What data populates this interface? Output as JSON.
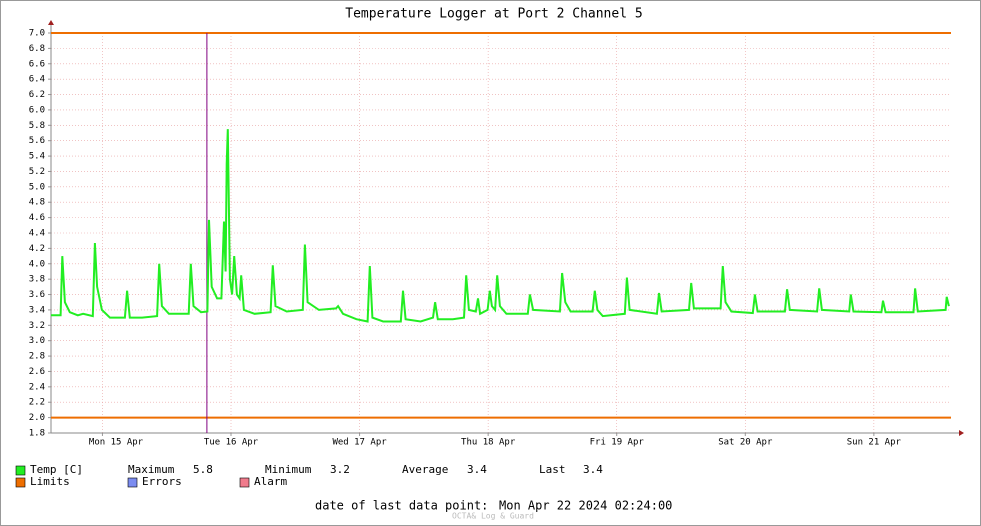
{
  "chart_data": {
    "type": "line",
    "title": "Temperature Logger at Port 2 Channel 5",
    "xlim": [
      0,
      168
    ],
    "xticks": [
      {
        "value": 9.6,
        "label": "Mon 15 Apr"
      },
      {
        "value": 33.6,
        "label": "Tue 16 Apr"
      },
      {
        "value": 57.6,
        "label": "Wed 17 Apr"
      },
      {
        "value": 81.6,
        "label": "Thu 18 Apr"
      },
      {
        "value": 105.6,
        "label": "Fri 19 Apr"
      },
      {
        "value": 129.6,
        "label": "Sat 20 Apr"
      },
      {
        "value": 153.6,
        "label": "Sun 21 Apr"
      }
    ],
    "ylim": [
      1.8,
      7.0
    ],
    "yticks": [
      1.8,
      {
        "value": 2.0,
        "label": "2.0"
      },
      2.2,
      2.4,
      2.6,
      2.8,
      {
        "value": 3.0,
        "label": "3.0"
      },
      3.2,
      3.4,
      3.6,
      3.8,
      {
        "value": 4.0,
        "label": "4.0"
      },
      4.2,
      4.4,
      4.6,
      4.8,
      {
        "value": 5.0,
        "label": "5.0"
      },
      5.2,
      5.4,
      5.6,
      5.8,
      {
        "value": 6.0,
        "label": "6.0"
      },
      6.2,
      6.4,
      6.6,
      6.8,
      {
        "value": 7.0,
        "label": "7.0"
      }
    ],
    "grid": true,
    "limits": {
      "name": "Limits",
      "color": "#ee6e00",
      "values": [
        2.0,
        7.0
      ]
    },
    "marker_x": 29.1,
    "marker_color": "#800080",
    "series": [
      {
        "name": "Temp [C]",
        "color": "#22ee22",
        "x": [
          0,
          1.8,
          2.1,
          2.6,
          3.5,
          5,
          6,
          7.8,
          8.2,
          8.6,
          9.5,
          11,
          13.8,
          14.2,
          14.7,
          17,
          19.8,
          20.2,
          20.7,
          22,
          25.7,
          26.1,
          26.6,
          28,
          29.2,
          29.5,
          30,
          31,
          31.8,
          32.3,
          32.6,
          32.8,
          33.0,
          33.4,
          33.8,
          34.2,
          34.7,
          35.2,
          35.5,
          36,
          38,
          41,
          41.4,
          41.9,
          44,
          47,
          47.4,
          47.9,
          50,
          53.2,
          53.6,
          54.5,
          57,
          59.1,
          59.5,
          60,
          62,
          65.3,
          65.7,
          66.2,
          69,
          71.3,
          71.7,
          72.2,
          75,
          77.1,
          77.5,
          78,
          79.3,
          79.7,
          80.1,
          81.5,
          81.9,
          82.3,
          82.9,
          83.3,
          83.8,
          85,
          89,
          89.4,
          90,
          95,
          95.4,
          96,
          97,
          101.1,
          101.5,
          102,
          103,
          107.1,
          107.5,
          108,
          113.1,
          113.5,
          114,
          119.1,
          119.5,
          120,
          125,
          125.4,
          125.9,
          127,
          131,
          131.4,
          131.9,
          137,
          137.4,
          137.9,
          143,
          143.4,
          143.9,
          149,
          149.3,
          149.8,
          155,
          155.3,
          155.8,
          161,
          161.3,
          161.8,
          167,
          167.2,
          167.6
        ],
        "values": [
          3.33,
          3.33,
          4.1,
          3.5,
          3.37,
          3.33,
          3.35,
          3.32,
          4.27,
          3.7,
          3.4,
          3.3,
          3.3,
          3.65,
          3.3,
          3.3,
          3.32,
          4.0,
          3.45,
          3.35,
          3.35,
          4.0,
          3.45,
          3.37,
          3.38,
          4.57,
          3.7,
          3.55,
          3.55,
          4.55,
          3.9,
          5.3,
          5.75,
          3.8,
          3.6,
          4.1,
          3.6,
          3.55,
          3.85,
          3.4,
          3.35,
          3.37,
          3.98,
          3.45,
          3.38,
          3.4,
          4.25,
          3.5,
          3.4,
          3.42,
          3.45,
          3.35,
          3.28,
          3.25,
          3.97,
          3.3,
          3.25,
          3.25,
          3.65,
          3.28,
          3.25,
          3.3,
          3.5,
          3.28,
          3.28,
          3.3,
          3.85,
          3.4,
          3.38,
          3.55,
          3.35,
          3.4,
          3.65,
          3.45,
          3.4,
          3.85,
          3.45,
          3.35,
          3.35,
          3.6,
          3.4,
          3.38,
          3.88,
          3.5,
          3.38,
          3.38,
          3.65,
          3.4,
          3.32,
          3.35,
          3.82,
          3.4,
          3.35,
          3.62,
          3.38,
          3.4,
          3.75,
          3.42,
          3.42,
          3.97,
          3.5,
          3.38,
          3.36,
          3.6,
          3.38,
          3.38,
          3.67,
          3.4,
          3.38,
          3.68,
          3.4,
          3.38,
          3.6,
          3.38,
          3.37,
          3.52,
          3.37,
          3.37,
          3.68,
          3.38,
          3.4,
          3.57,
          3.45
        ]
      }
    ],
    "stats": [
      {
        "label": "Maximum",
        "value": 5.8
      },
      {
        "label": "Minimum",
        "value": 3.2
      },
      {
        "label": "Average",
        "value": 3.4
      },
      {
        "label": "Last",
        "value": 3.4
      }
    ],
    "legend_extra": [
      {
        "name": "Errors",
        "color": "#7b8cf0"
      },
      {
        "name": "Alarm",
        "color": "#f07b8c"
      }
    ],
    "last_point_label": "date of last data point:",
    "last_point": "Mon Apr 22 2024 02:24:00",
    "footer": "OCTA& Log & Guard"
  }
}
